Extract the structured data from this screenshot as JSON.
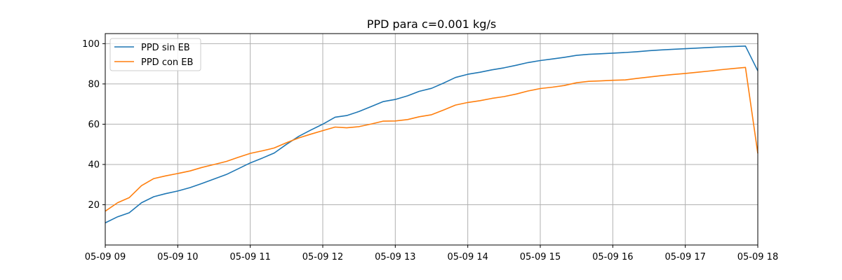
{
  "chart_data": {
    "type": "line",
    "title": "PPD para c=0.001 kg/s",
    "xlabel": "",
    "ylabel": "",
    "x_hours": [
      9.0,
      9.17,
      9.33,
      9.5,
      9.67,
      9.83,
      10.0,
      10.17,
      10.33,
      10.5,
      10.67,
      10.83,
      11.0,
      11.17,
      11.33,
      11.5,
      11.67,
      11.83,
      12.0,
      12.17,
      12.33,
      12.5,
      12.67,
      12.83,
      13.0,
      13.17,
      13.33,
      13.5,
      13.67,
      13.83,
      14.0,
      14.17,
      14.33,
      14.5,
      14.67,
      14.83,
      15.0,
      15.17,
      15.33,
      15.5,
      15.67,
      15.83,
      16.0,
      16.17,
      16.33,
      16.5,
      16.67,
      16.83,
      17.0,
      17.17,
      17.33,
      17.5,
      17.67,
      17.83,
      18.0
    ],
    "series": [
      {
        "name": "PPD sin EB",
        "color": "#1f77b4",
        "values": [
          11,
          14,
          16,
          21,
          24,
          25.5,
          26.8,
          28.5,
          30.5,
          32.8,
          35,
          37.8,
          40.8,
          43.2,
          45.7,
          50,
          54,
          57,
          60,
          63.5,
          64.3,
          66.3,
          68.8,
          71.2,
          72.3,
          74.1,
          76.3,
          77.8,
          80.5,
          83.2,
          84.8,
          85.8,
          87,
          88,
          89.3,
          90.6,
          91.6,
          92.4,
          93.2,
          94.2,
          94.7,
          95,
          95.3,
          95.6,
          96,
          96.5,
          96.9,
          97.2,
          97.5,
          97.8,
          98.1,
          98.4,
          98.6,
          98.8,
          86.5
        ]
      },
      {
        "name": "PPD con EB",
        "color": "#ff7f0e",
        "values": [
          16.8,
          21,
          23.5,
          29.5,
          33,
          34.3,
          35.5,
          36.8,
          38.5,
          40,
          41.5,
          43.5,
          45.5,
          46.8,
          48.2,
          50.8,
          53.2,
          55,
          56.8,
          58.6,
          58.2,
          58.8,
          60.1,
          61.5,
          61.6,
          62.3,
          63.7,
          64.7,
          67.1,
          69.5,
          70.8,
          71.7,
          72.8,
          73.7,
          75,
          76.5,
          77.7,
          78.4,
          79.2,
          80.6,
          81.3,
          81.5,
          81.8,
          82,
          82.7,
          83.4,
          84.1,
          84.7,
          85.2,
          85.8,
          86.4,
          87.1,
          87.7,
          88.2,
          45.5
        ]
      }
    ],
    "x_ticks": [
      {
        "hour": 9,
        "label": "05-09 09"
      },
      {
        "hour": 10,
        "label": "05-09 10"
      },
      {
        "hour": 11,
        "label": "05-09 11"
      },
      {
        "hour": 12,
        "label": "05-09 12"
      },
      {
        "hour": 13,
        "label": "05-09 13"
      },
      {
        "hour": 14,
        "label": "05-09 14"
      },
      {
        "hour": 15,
        "label": "05-09 15"
      },
      {
        "hour": 16,
        "label": "05-09 16"
      },
      {
        "hour": 17,
        "label": "05-09 17"
      },
      {
        "hour": 18,
        "label": "05-09 18"
      }
    ],
    "y_ticks": [
      20,
      40,
      60,
      80,
      100
    ],
    "xlim": [
      9,
      18
    ],
    "ylim": [
      0,
      105
    ],
    "grid": true,
    "legend_position": "upper-left"
  }
}
